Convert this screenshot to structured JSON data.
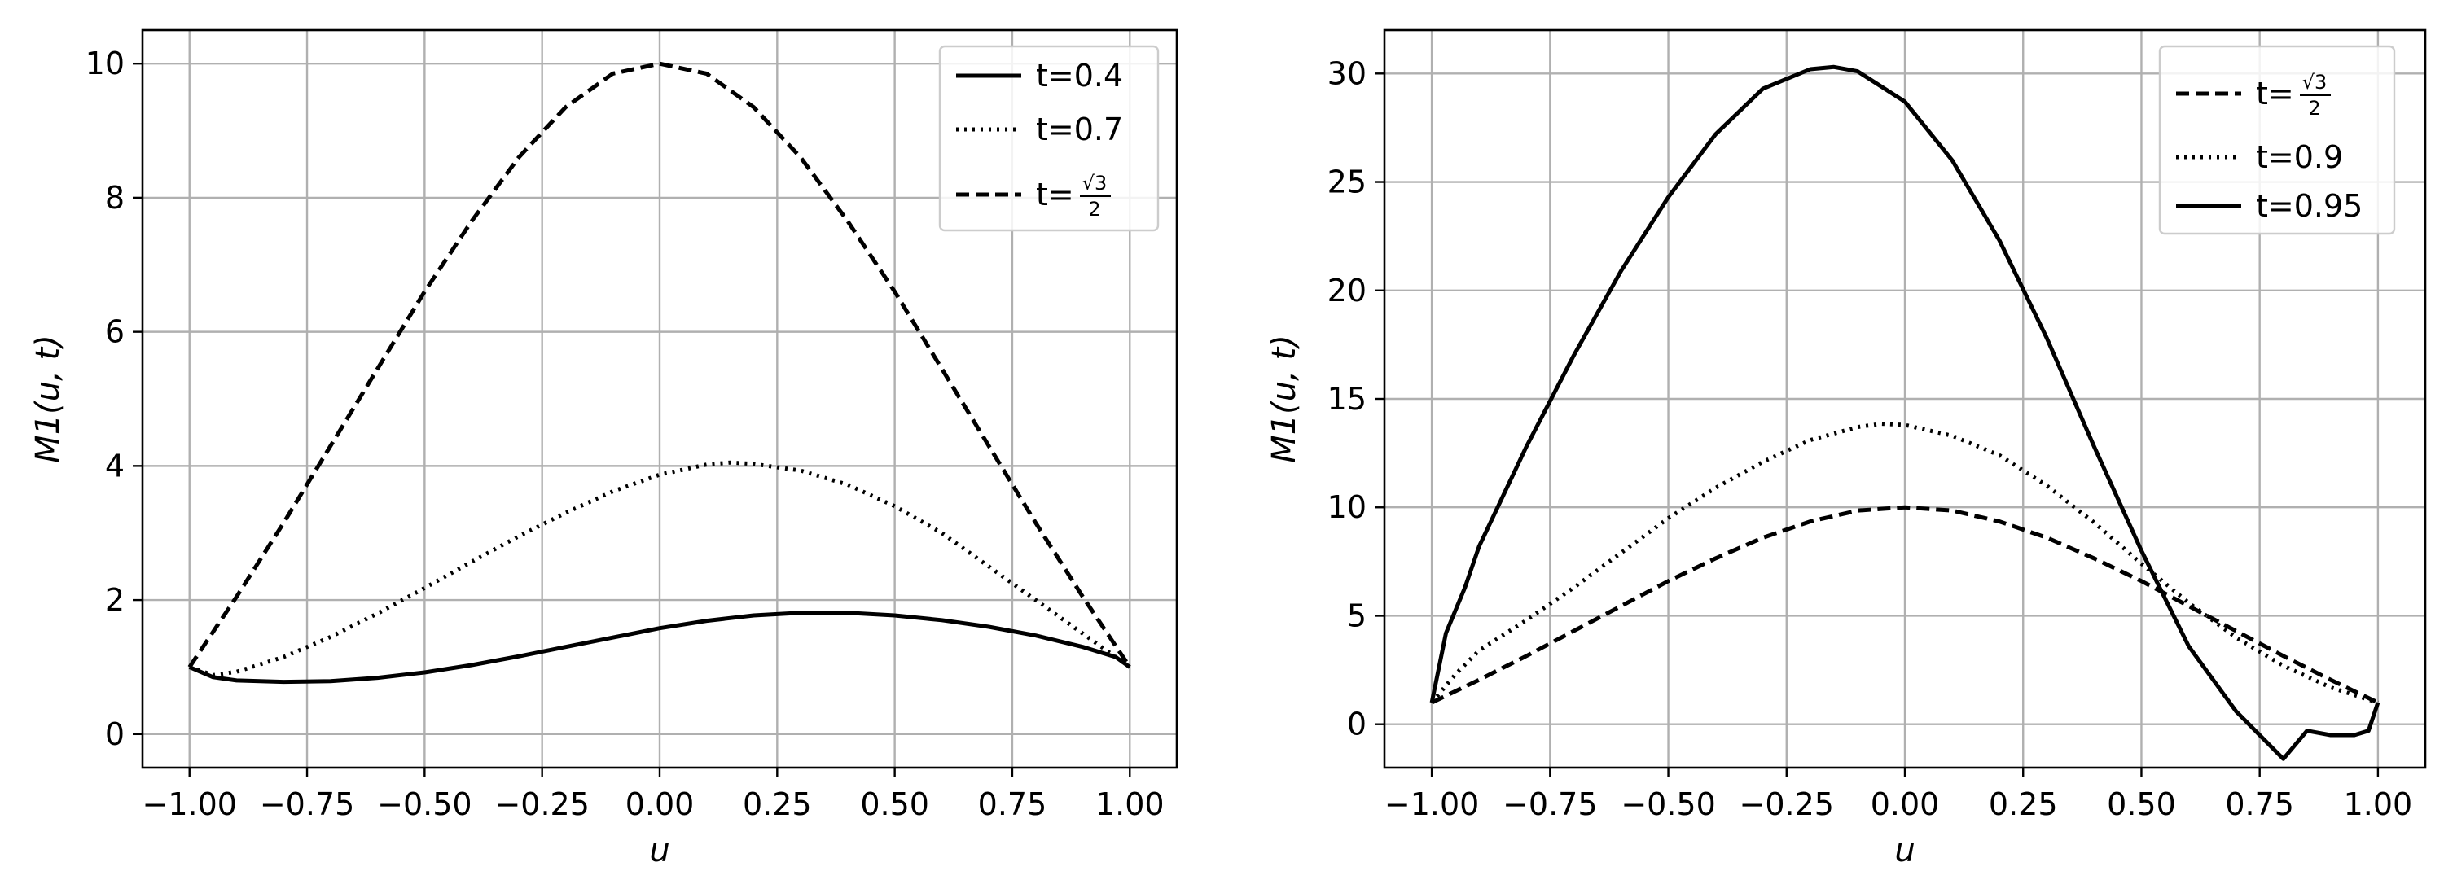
{
  "chart_data": [
    {
      "type": "line",
      "title": "",
      "xlabel": "u",
      "ylabel": "M1(u, t)",
      "xlim": [
        -1.1,
        1.1
      ],
      "ylim": [
        -0.5,
        10.5
      ],
      "xticks": [
        -1.0,
        -0.75,
        -0.5,
        -0.25,
        0.0,
        0.25,
        0.5,
        0.75,
        1.0
      ],
      "xtick_labels": [
        "−1.00",
        "−0.75",
        "−0.50",
        "−0.25",
        "0.00",
        "0.25",
        "0.50",
        "0.75",
        "1.00"
      ],
      "yticks": [
        0,
        2,
        4,
        6,
        8,
        10
      ],
      "ytick_labels": [
        "0",
        "2",
        "4",
        "6",
        "8",
        "10"
      ],
      "grid": true,
      "legend_position": "top-right",
      "series": [
        {
          "name": "t=0.4",
          "label_prefix": "t=",
          "label_value": "0.4",
          "style": "solid",
          "x": [
            -1.0,
            -0.95,
            -0.9,
            -0.8,
            -0.7,
            -0.6,
            -0.5,
            -0.4,
            -0.3,
            -0.2,
            -0.1,
            0.0,
            0.1,
            0.2,
            0.3,
            0.4,
            0.5,
            0.6,
            0.7,
            0.8,
            0.9,
            0.97,
            1.0
          ],
          "y": [
            1.0,
            0.85,
            0.8,
            0.78,
            0.79,
            0.84,
            0.92,
            1.03,
            1.16,
            1.3,
            1.44,
            1.58,
            1.69,
            1.77,
            1.81,
            1.81,
            1.77,
            1.7,
            1.6,
            1.47,
            1.3,
            1.15,
            1.0
          ]
        },
        {
          "name": "t=0.7",
          "label_prefix": "t=",
          "label_value": "0.7",
          "style": "dotted",
          "x": [
            -1.0,
            -0.95,
            -0.9,
            -0.8,
            -0.7,
            -0.6,
            -0.5,
            -0.4,
            -0.3,
            -0.2,
            -0.1,
            0.0,
            0.1,
            0.15,
            0.2,
            0.3,
            0.4,
            0.5,
            0.6,
            0.7,
            0.8,
            0.9,
            1.0
          ],
          "y": [
            1.0,
            0.88,
            0.93,
            1.15,
            1.45,
            1.8,
            2.18,
            2.57,
            2.95,
            3.3,
            3.62,
            3.87,
            4.02,
            4.05,
            4.03,
            3.93,
            3.72,
            3.4,
            3.0,
            2.5,
            2.0,
            1.5,
            1.0
          ]
        },
        {
          "name": "t=√3/2",
          "label_prefix": "t=",
          "label_value": "√3/2",
          "style": "dashed",
          "x": [
            -1.0,
            -0.9,
            -0.8,
            -0.7,
            -0.6,
            -0.5,
            -0.4,
            -0.3,
            -0.2,
            -0.1,
            0.0,
            0.1,
            0.2,
            0.3,
            0.4,
            0.5,
            0.6,
            0.7,
            0.8,
            0.9,
            1.0
          ],
          "y": [
            1.0,
            2.05,
            3.15,
            4.3,
            5.45,
            6.6,
            7.65,
            8.6,
            9.35,
            9.85,
            10.0,
            9.85,
            9.35,
            8.6,
            7.65,
            6.6,
            5.45,
            4.3,
            3.15,
            2.05,
            1.0
          ]
        }
      ]
    },
    {
      "type": "line",
      "title": "",
      "xlabel": "u",
      "ylabel": "M1(u, t)",
      "xlim": [
        -1.1,
        1.1
      ],
      "ylim": [
        -2.0,
        32.0
      ],
      "xticks": [
        -1.0,
        -0.75,
        -0.5,
        -0.25,
        0.0,
        0.25,
        0.5,
        0.75,
        1.0
      ],
      "xtick_labels": [
        "−1.00",
        "−0.75",
        "−0.50",
        "−0.25",
        "0.00",
        "0.25",
        "0.50",
        "0.75",
        "1.00"
      ],
      "yticks": [
        0,
        5,
        10,
        15,
        20,
        25,
        30
      ],
      "ytick_labels": [
        "0",
        "5",
        "10",
        "15",
        "20",
        "25",
        "30"
      ],
      "grid": true,
      "legend_position": "top-right",
      "series": [
        {
          "name": "t=√3/2",
          "label_prefix": "t=",
          "label_value": "√3/2",
          "style": "dashed",
          "x": [
            -1.0,
            -0.9,
            -0.8,
            -0.7,
            -0.6,
            -0.5,
            -0.4,
            -0.3,
            -0.2,
            -0.1,
            0.0,
            0.1,
            0.2,
            0.3,
            0.4,
            0.5,
            0.6,
            0.7,
            0.8,
            0.9,
            1.0
          ],
          "y": [
            1.0,
            2.05,
            3.15,
            4.3,
            5.45,
            6.6,
            7.65,
            8.6,
            9.35,
            9.85,
            10.0,
            9.85,
            9.35,
            8.6,
            7.65,
            6.6,
            5.45,
            4.3,
            3.15,
            2.05,
            1.0
          ]
        },
        {
          "name": "t=0.9",
          "label_prefix": "t=",
          "label_value": "0.9",
          "style": "dotted",
          "x": [
            -1.0,
            -0.95,
            -0.9,
            -0.8,
            -0.7,
            -0.6,
            -0.5,
            -0.4,
            -0.3,
            -0.2,
            -0.1,
            -0.05,
            0.0,
            0.1,
            0.2,
            0.3,
            0.4,
            0.5,
            0.6,
            0.7,
            0.8,
            0.9,
            1.0
          ],
          "y": [
            1.0,
            2.3,
            3.4,
            4.8,
            6.3,
            7.9,
            9.5,
            10.9,
            12.1,
            13.1,
            13.7,
            13.85,
            13.8,
            13.3,
            12.4,
            11.0,
            9.3,
            7.4,
            5.6,
            4.0,
            2.7,
            1.7,
            1.0
          ]
        },
        {
          "name": "t=0.95",
          "label_prefix": "t=",
          "label_value": "0.95",
          "style": "solid",
          "x": [
            -1.0,
            -0.97,
            -0.93,
            -0.9,
            -0.8,
            -0.7,
            -0.6,
            -0.5,
            -0.4,
            -0.3,
            -0.2,
            -0.15,
            -0.1,
            0.0,
            0.1,
            0.2,
            0.3,
            0.4,
            0.5,
            0.6,
            0.7,
            0.8,
            0.85,
            0.9,
            0.95,
            0.98,
            1.0
          ],
          "y": [
            1.0,
            4.2,
            6.3,
            8.2,
            12.8,
            17.0,
            20.9,
            24.3,
            27.2,
            29.3,
            30.2,
            30.3,
            30.1,
            28.7,
            26.0,
            22.3,
            17.8,
            12.8,
            8.0,
            3.6,
            0.6,
            -1.6,
            -0.3,
            -0.5,
            -0.5,
            -0.3,
            1.0
          ]
        }
      ]
    }
  ]
}
